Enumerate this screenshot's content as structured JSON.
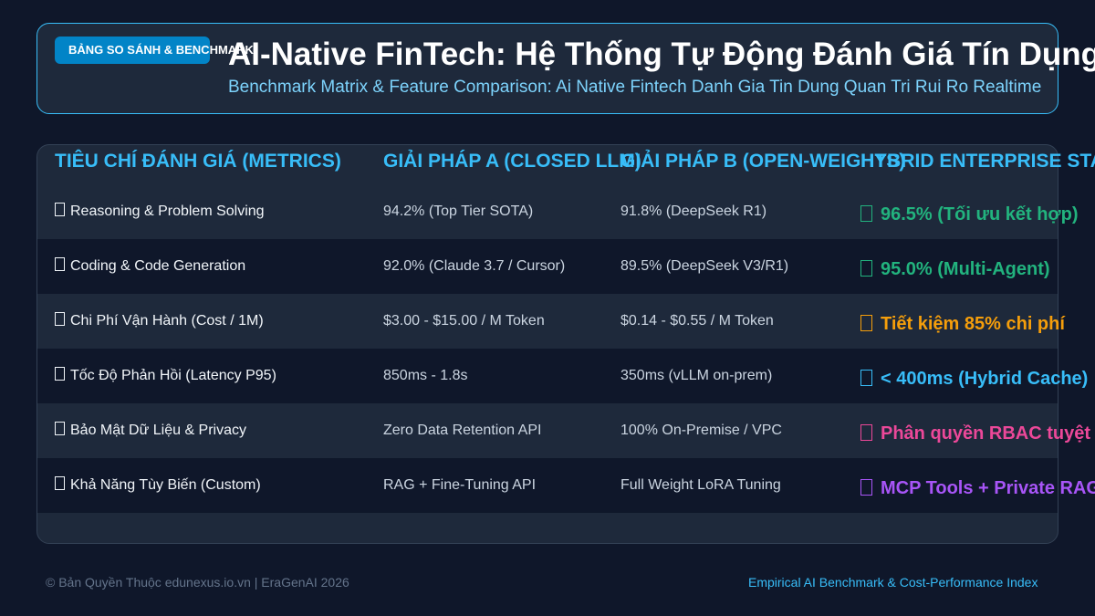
{
  "header": {
    "badge": "BẢNG SO SÁNH & BENCHMARK",
    "title": "AI-Native FinTech: Hệ Thống Tự Động Đánh Giá Tín Dụng",
    "subtitle": "Benchmark Matrix & Feature Comparison: Ai Native Fintech Danh Gia Tin Dung Quan Tri Rui Ro Realtime"
  },
  "table": {
    "columns": [
      "TIÊU CHÍ ĐÁNH GIÁ (METRICS)",
      "GIẢI PHÁP A (CLOSED LLM)",
      "GIẢI PHÁP B (OPEN-WEIGHTS)",
      "HYBRID ENTERPRISE STACK"
    ],
    "rows": [
      [
        "Reasoning & Problem Solving",
        "94.2% (Top Tier SOTA)",
        "91.8% (DeepSeek R1)",
        "96.5% (Tối ưu kết hợp)"
      ],
      [
        "Coding & Code Generation",
        "92.0% (Claude 3.7 / Cursor)",
        "89.5% (DeepSeek V3/R1)",
        "95.0% (Multi-Agent)"
      ],
      [
        "Chi Phí Vận Hành (Cost / 1M)",
        "$3.00 - $15.00 / M Token",
        "$0.14 - $0.55 / M Token",
        "Tiết kiệm 85% chi phí"
      ],
      [
        "Tốc Độ Phản Hồi (Latency P95)",
        "850ms - 1.8s",
        "350ms (vLLM on-prem)",
        "< 400ms (Hybrid Cache)"
      ],
      [
        "Bảo Mật Dữ Liệu & Privacy",
        "Zero Data Retention API",
        "100% On-Premise / VPC",
        "Phân quyền RBAC tuyệt đối"
      ],
      [
        "Khả Năng Tùy Biến (Custom)",
        "RAG + Fine-Tuning API",
        "Full Weight LoRA Tuning",
        "MCP Tools + Private RAG"
      ]
    ],
    "highlight_colors": [
      "#22b37e",
      "#22b37e",
      "#f59e0b",
      "#38bdf8",
      "#ec4899",
      "#a855f7"
    ]
  },
  "footer": {
    "left": "© Bản Quyền Thuộc edunexus.io.vn | EraGenAI 2026",
    "right": "Empirical AI Benchmark & Cost-Performance Index"
  }
}
